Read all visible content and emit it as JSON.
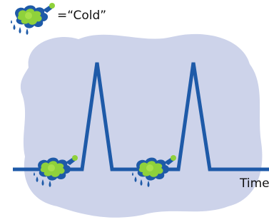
{
  "legend": {
    "label": "=“Cold”"
  },
  "axis": {
    "label": "Time"
  }
}
